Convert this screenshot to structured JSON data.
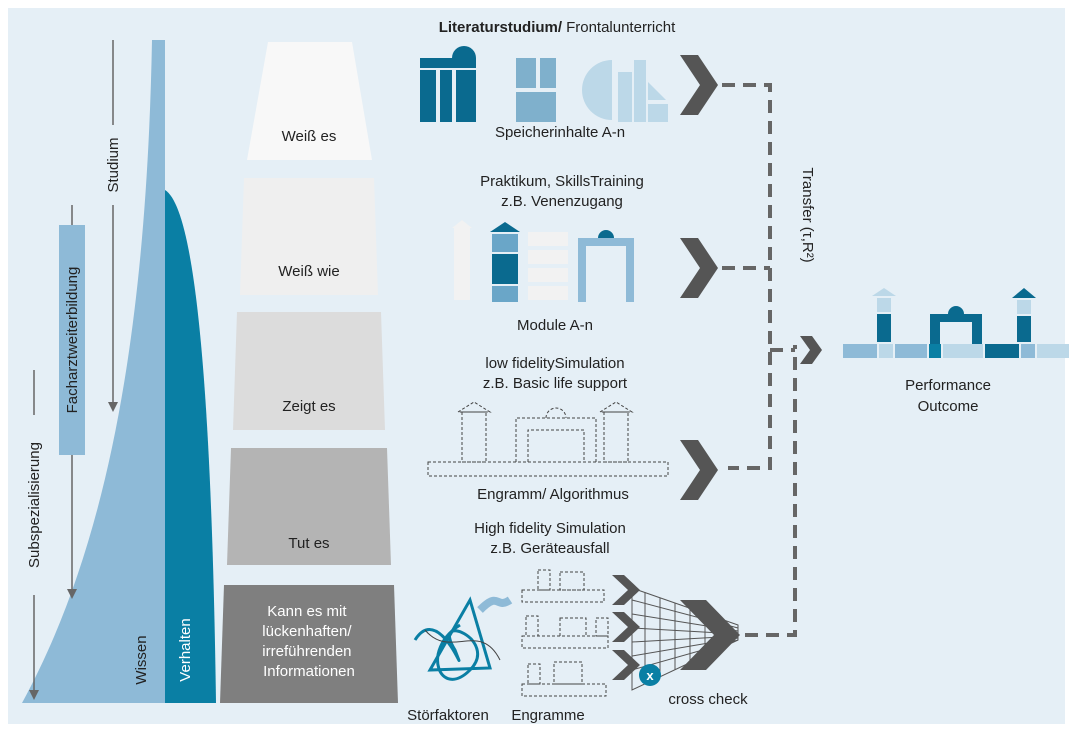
{
  "left_axis": {
    "studium": "Studium",
    "facharzt": "Facharztweiterbildung",
    "subspezialisierung": "Subspezialisierung",
    "wissen": "Wissen",
    "verhalten": "Verhalten"
  },
  "levels": [
    {
      "lines": [
        "Weiß es"
      ]
    },
    {
      "lines": [
        "Weiß wie"
      ]
    },
    {
      "lines": [
        "Zeigt es"
      ]
    },
    {
      "lines": [
        "Tut es"
      ]
    },
    {
      "lines": [
        "Kann es mit",
        "lückenhaften/",
        "irreführenden",
        "Informationen"
      ]
    }
  ],
  "methods": [
    {
      "heading_bold": "Literaturstudium/",
      "heading": "Frontalunterricht",
      "caption": "Speicherinhalte A-n"
    },
    {
      "lines": [
        "Praktikum, SkillsTraining",
        "z.B. Venenzugang"
      ],
      "caption": "Module A-n"
    },
    {
      "lines": [
        "low fidelitySimulation",
        "z.B. Basic life support"
      ],
      "caption": "Engramm/ Algorithmus"
    },
    {
      "lines": [
        "High fidelity Simulation",
        "z.B. Geräteausfall"
      ],
      "captions": [
        "Störfaktoren",
        "Engramme",
        "cross check"
      ],
      "badge": "x"
    }
  ],
  "transfer": "Transfer (τ,R²)",
  "outcome": [
    "Performance",
    "Outcome"
  ]
}
